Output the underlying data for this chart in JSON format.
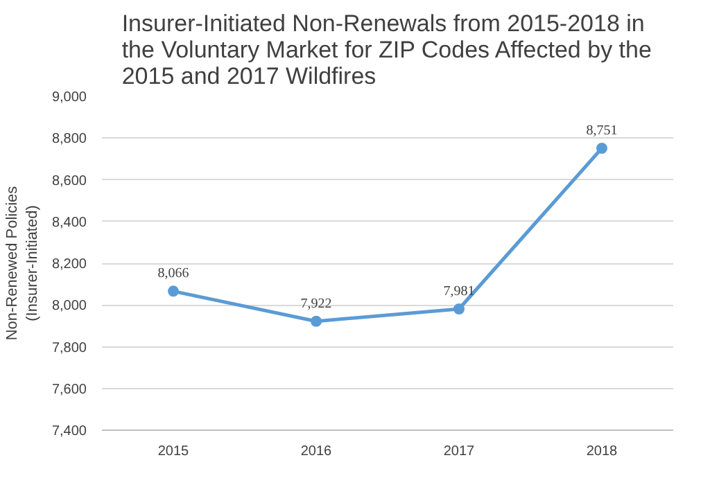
{
  "chart_data": {
    "type": "line",
    "title": "Insurer-Initiated Non-Renewals from 2015-2018 in\nthe Voluntary Market for ZIP Codes Affected by the\n2015 and 2017 Wildfires",
    "ylabel": "Non-Renewed Policies\n(Insurer-Initiated)",
    "categories": [
      "2015",
      "2016",
      "2017",
      "2018"
    ],
    "series": [
      {
        "color": "#5b9bd5",
        "values": [
          8066,
          7922,
          7981,
          8751
        ]
      }
    ],
    "ylim": [
      7400,
      9000
    ],
    "yticks": [
      {
        "value": 7400,
        "label": "7,400"
      },
      {
        "value": 7600,
        "label": "7,600"
      },
      {
        "value": 7800,
        "label": "7,800"
      },
      {
        "value": 8000,
        "label": "8,000"
      },
      {
        "value": 8200,
        "label": "8,200"
      },
      {
        "value": 8400,
        "label": "8,400"
      },
      {
        "value": 8600,
        "label": "8,600"
      },
      {
        "value": 8800,
        "label": "8,800"
      },
      {
        "value": 9000,
        "label": "9,000"
      }
    ],
    "value_labels": [
      "8,066",
      "7,922",
      "7,981",
      "8,751"
    ],
    "grid": "y",
    "marker": "circle",
    "line_style": "solid"
  }
}
